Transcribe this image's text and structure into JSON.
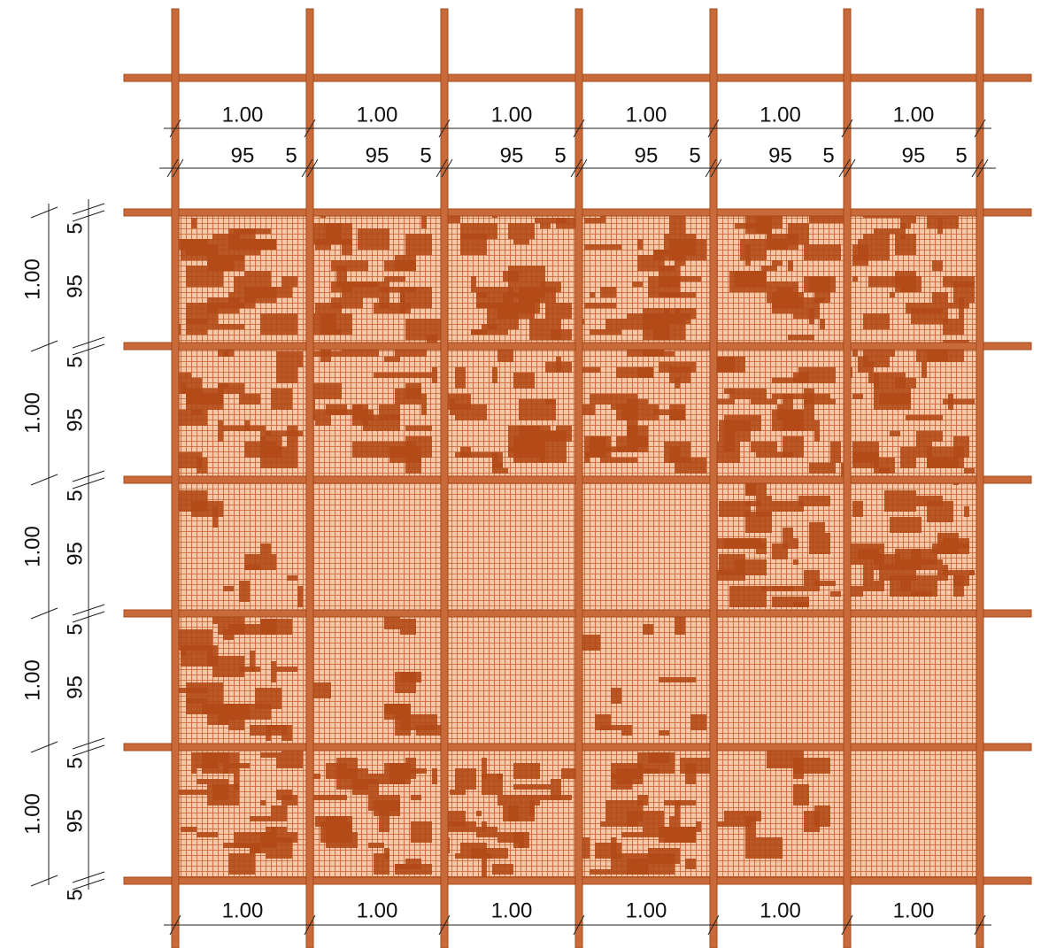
{
  "top_dimensions": {
    "spans": [
      "1.00",
      "1.00",
      "1.00",
      "1.00",
      "1.00",
      "1.00"
    ],
    "subspans": [
      {
        "main": "95",
        "joint": "5"
      },
      {
        "main": "95",
        "joint": "5"
      },
      {
        "main": "95",
        "joint": "5"
      },
      {
        "main": "95",
        "joint": "5"
      },
      {
        "main": "95",
        "joint": "5"
      },
      {
        "main": "95",
        "joint": "5"
      }
    ]
  },
  "left_dimensions": {
    "spans": [
      "1.00",
      "1.00",
      "1.00",
      "1.00",
      "1.00"
    ],
    "subspans": [
      {
        "joint": "5",
        "main": "95"
      },
      {
        "joint": "5",
        "main": "95"
      },
      {
        "joint": "5",
        "main": "95"
      },
      {
        "joint": "5",
        "main": "95"
      },
      {
        "joint": "5",
        "main": "95"
      }
    ],
    "end_joint": "5"
  },
  "bottom_dimensions": {
    "spans": [
      "1.00",
      "1.00",
      "1.00",
      "1.00",
      "1.00",
      "1.00"
    ]
  }
}
